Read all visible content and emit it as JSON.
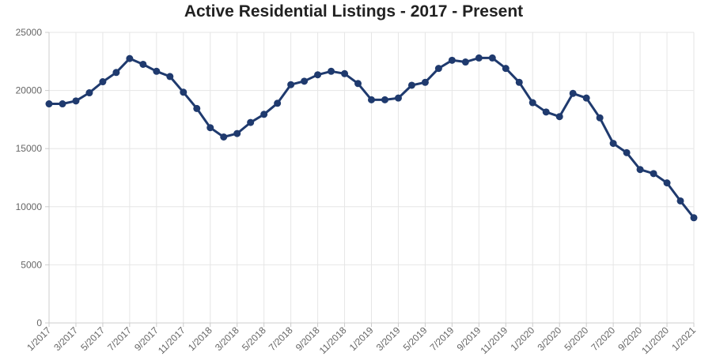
{
  "chart_data": {
    "type": "line",
    "title": "Active Residential Listings - 2017 - Present",
    "xlabel": "",
    "ylabel": "",
    "ylim": [
      0,
      25000
    ],
    "yticks": [
      0,
      5000,
      10000,
      15000,
      20000,
      25000
    ],
    "grid": true,
    "line_color": "#1f3a6e",
    "x": [
      "1/2017",
      "2/2017",
      "3/2017",
      "4/2017",
      "5/2017",
      "6/2017",
      "7/2017",
      "8/2017",
      "9/2017",
      "10/2017",
      "11/2017",
      "12/2017",
      "1/2018",
      "2/2018",
      "3/2018",
      "4/2018",
      "5/2018",
      "6/2018",
      "7/2018",
      "8/2018",
      "9/2018",
      "10/2018",
      "11/2018",
      "12/2018",
      "1/2019",
      "2/2019",
      "3/2019",
      "4/2019",
      "5/2019",
      "6/2019",
      "7/2019",
      "8/2019",
      "9/2019",
      "10/2019",
      "11/2019",
      "12/2019",
      "1/2020",
      "2/2020",
      "3/2020",
      "4/2020",
      "5/2020",
      "6/2020",
      "7/2020",
      "8/2020",
      "9/2020",
      "10/2020",
      "11/2020",
      "12/2020",
      "1/2021"
    ],
    "x_tick_labels": [
      "1/2017",
      "3/2017",
      "5/2017",
      "7/2017",
      "9/2017",
      "11/2017",
      "1/2018",
      "3/2018",
      "5/2018",
      "7/2018",
      "9/2018",
      "11/2018",
      "1/2019",
      "3/2019",
      "5/2019",
      "7/2019",
      "9/2019",
      "11/2019",
      "1/2020",
      "3/2020",
      "5/2020",
      "7/2020",
      "9/2020",
      "11/2020",
      "1/2021"
    ],
    "series": [
      {
        "values": [
          18850,
          18850,
          19100,
          19800,
          20750,
          21550,
          22750,
          22250,
          21650,
          21200,
          19850,
          18450,
          16800,
          16000,
          16300,
          17250,
          17950,
          18900,
          20500,
          20800,
          21350,
          21650,
          21450,
          20600,
          19200,
          19200,
          19350,
          20450,
          20700,
          21900,
          22600,
          22450,
          22800,
          22800,
          21900,
          20700,
          18950,
          18150,
          17750,
          19750,
          19350,
          17650,
          15450,
          14650,
          13200,
          12850,
          12050,
          10500,
          9050
        ]
      }
    ]
  }
}
